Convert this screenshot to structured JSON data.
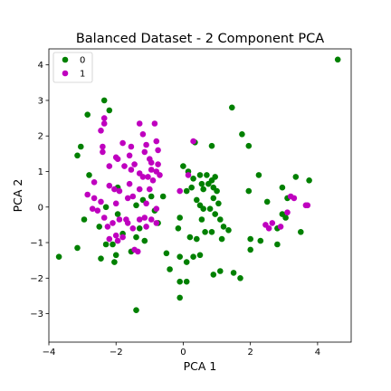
{
  "chart_data": {
    "type": "scatter",
    "title": "Balanced Dataset - 2 Component PCA",
    "xlabel": "PCA 1",
    "ylabel": "PCA 2",
    "xlim": [
      -4.0,
      5.0
    ],
    "ylim": [
      -3.8,
      4.45
    ],
    "xticks": [
      -4,
      -2,
      0,
      2,
      4
    ],
    "yticks": [
      -3,
      -2,
      -1,
      0,
      1,
      2,
      3,
      4
    ],
    "grid": false,
    "legend_position": "top-left",
    "series": [
      {
        "name": "0",
        "color": "#008000",
        "points": [
          [
            4.6,
            4.15
          ],
          [
            -2.35,
            3.0
          ],
          [
            -2.2,
            2.72
          ],
          [
            -2.85,
            2.6
          ],
          [
            1.45,
            2.8
          ],
          [
            1.75,
            2.05
          ],
          [
            1.95,
            1.72
          ],
          [
            0.85,
            1.72
          ],
          [
            0.35,
            1.82
          ],
          [
            -3.05,
            1.7
          ],
          [
            -3.15,
            1.45
          ],
          [
            -2.8,
            0.9
          ],
          [
            0.0,
            1.15
          ],
          [
            0.15,
            1.0
          ],
          [
            0.5,
            0.9
          ],
          [
            0.55,
            0.65
          ],
          [
            0.6,
            0.5
          ],
          [
            0.85,
            0.75
          ],
          [
            0.9,
            0.55
          ],
          [
            0.95,
            0.85
          ],
          [
            0.75,
            0.65
          ],
          [
            0.7,
            0.9
          ],
          [
            1.0,
            0.45
          ],
          [
            0.3,
            0.8
          ],
          [
            0.25,
            0.55
          ],
          [
            0.1,
            0.45
          ],
          [
            -0.6,
            0.3
          ],
          [
            0.4,
            0.2
          ],
          [
            0.5,
            0.05
          ],
          [
            0.6,
            -0.05
          ],
          [
            0.8,
            -0.05
          ],
          [
            0.9,
            0.25
          ],
          [
            1.05,
            0.1
          ],
          [
            0.95,
            -0.2
          ],
          [
            1.1,
            -0.35
          ],
          [
            0.55,
            -0.35
          ],
          [
            0.65,
            -0.7
          ],
          [
            0.85,
            -0.7
          ],
          [
            1.2,
            -0.55
          ],
          [
            1.35,
            -0.65
          ],
          [
            1.15,
            -0.9
          ],
          [
            0.4,
            -0.9
          ],
          [
            0.2,
            -0.85
          ],
          [
            -0.1,
            -0.3
          ],
          [
            -0.15,
            -0.6
          ],
          [
            -0.5,
            -1.3
          ],
          [
            -0.4,
            -1.75
          ],
          [
            -0.1,
            -1.4
          ],
          [
            0.1,
            -1.55
          ],
          [
            0.3,
            -1.4
          ],
          [
            0.5,
            -1.35
          ],
          [
            -0.1,
            -2.1
          ],
          [
            -0.1,
            -2.55
          ],
          [
            0.1,
            -2.1
          ],
          [
            0.9,
            -1.9
          ],
          [
            1.1,
            -1.8
          ],
          [
            1.5,
            -1.85
          ],
          [
            1.7,
            -2.0
          ],
          [
            2.0,
            -1.2
          ],
          [
            2.3,
            -0.95
          ],
          [
            2.0,
            -0.9
          ],
          [
            1.95,
            0.45
          ],
          [
            2.25,
            0.9
          ],
          [
            2.5,
            0.15
          ],
          [
            2.95,
            0.55
          ],
          [
            3.35,
            0.85
          ],
          [
            3.1,
            0.25
          ],
          [
            3.75,
            0.75
          ],
          [
            3.05,
            -0.3
          ],
          [
            2.95,
            -0.2
          ],
          [
            2.8,
            -0.6
          ],
          [
            2.8,
            -1.05
          ],
          [
            3.5,
            -0.7
          ],
          [
            -3.7,
            -1.4
          ],
          [
            -3.15,
            -1.15
          ],
          [
            -2.95,
            -0.35
          ],
          [
            -2.5,
            -0.55
          ],
          [
            -2.45,
            -1.45
          ],
          [
            -2.3,
            -1.05
          ],
          [
            -2.1,
            -1.05
          ],
          [
            -2.0,
            -1.35
          ],
          [
            -2.05,
            -1.55
          ],
          [
            -1.95,
            -0.2
          ],
          [
            -1.8,
            -0.75
          ],
          [
            -1.55,
            -1.25
          ],
          [
            -1.4,
            -0.85
          ],
          [
            -1.3,
            -0.6
          ],
          [
            -1.15,
            -0.95
          ],
          [
            -1.4,
            0.05
          ],
          [
            -1.2,
            0.2
          ],
          [
            -0.95,
            0.3
          ],
          [
            -0.85,
            -0.1
          ],
          [
            -0.75,
            -0.45
          ],
          [
            -1.4,
            -2.9
          ],
          [
            -1.95,
            0.55
          ],
          [
            -2.3,
            0.0
          ]
        ]
      },
      {
        "name": "1",
        "color": "#BF00BF",
        "points": [
          [
            -2.35,
            2.5
          ],
          [
            -2.35,
            2.35
          ],
          [
            -2.45,
            2.15
          ],
          [
            -2.4,
            1.7
          ],
          [
            -2.4,
            1.55
          ],
          [
            -1.8,
            1.8
          ],
          [
            -1.55,
            1.7
          ],
          [
            -1.6,
            1.45
          ],
          [
            -1.3,
            2.35
          ],
          [
            -1.2,
            2.05
          ],
          [
            -1.1,
            1.75
          ],
          [
            -1.15,
            1.55
          ],
          [
            -1.0,
            1.35
          ],
          [
            -0.85,
            2.35
          ],
          [
            -0.8,
            1.85
          ],
          [
            -0.75,
            1.6
          ],
          [
            -0.75,
            1.2
          ],
          [
            -0.8,
            1.0
          ],
          [
            -0.7,
            0.9
          ],
          [
            -2.0,
            1.4
          ],
          [
            -1.95,
            1.35
          ],
          [
            -1.75,
            1.15
          ],
          [
            -1.55,
            1.05
          ],
          [
            -1.45,
            1.2
          ],
          [
            -1.3,
            0.95
          ],
          [
            -1.2,
            0.85
          ],
          [
            -1.05,
            0.85
          ],
          [
            -0.95,
            1.05
          ],
          [
            -0.9,
            0.75
          ],
          [
            -1.0,
            0.5
          ],
          [
            -1.3,
            0.5
          ],
          [
            -1.5,
            0.3
          ],
          [
            -1.65,
            0.25
          ],
          [
            -1.9,
            0.45
          ],
          [
            -2.05,
            0.5
          ],
          [
            -2.2,
            0.6
          ],
          [
            -2.65,
            0.7
          ],
          [
            -2.85,
            0.35
          ],
          [
            -2.65,
            0.25
          ],
          [
            -2.45,
            0.15
          ],
          [
            -2.7,
            -0.05
          ],
          [
            -2.55,
            -0.1
          ],
          [
            -2.35,
            -0.3
          ],
          [
            -2.1,
            -0.45
          ],
          [
            -1.9,
            -0.35
          ],
          [
            -1.7,
            -0.35
          ],
          [
            -1.65,
            -0.45
          ],
          [
            -1.5,
            -0.6
          ],
          [
            -1.3,
            -0.35
          ],
          [
            -1.15,
            -0.3
          ],
          [
            -0.95,
            -0.35
          ],
          [
            -0.8,
            -0.45
          ],
          [
            -1.1,
            -0.55
          ],
          [
            -2.0,
            -0.8
          ],
          [
            -2.25,
            -0.55
          ],
          [
            -2.2,
            -0.9
          ],
          [
            -1.95,
            -0.95
          ],
          [
            -1.8,
            -0.85
          ],
          [
            -1.45,
            -1.2
          ],
          [
            -1.35,
            -1.25
          ],
          [
            -0.8,
            -0.05
          ],
          [
            0.3,
            1.85
          ],
          [
            0.15,
            0.9
          ],
          [
            -0.1,
            0.45
          ],
          [
            2.45,
            -0.5
          ],
          [
            2.55,
            -0.6
          ],
          [
            2.65,
            -0.45
          ],
          [
            2.9,
            -0.55
          ],
          [
            3.1,
            -0.15
          ],
          [
            3.2,
            0.3
          ],
          [
            3.3,
            0.25
          ],
          [
            3.65,
            0.05
          ],
          [
            3.7,
            0.05
          ],
          [
            -2.2,
            1.15
          ],
          [
            -1.6,
            0.65
          ],
          [
            -1.1,
            0.1
          ],
          [
            -2.0,
            0.1
          ],
          [
            -0.95,
            1.25
          ]
        ]
      }
    ]
  }
}
